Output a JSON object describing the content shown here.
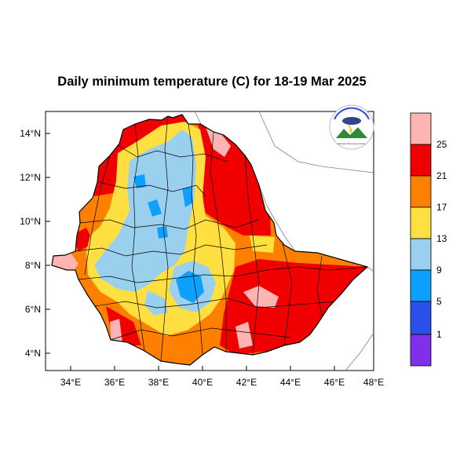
{
  "title": "Daily minimum temperature (C) for 18-19 Mar 2025",
  "map": {
    "lon_range": [
      33,
      48
    ],
    "lat_range": [
      3.2,
      15
    ],
    "x_ticks": [
      "34°E",
      "36°E",
      "38°E",
      "40°E",
      "42°E",
      "44°E",
      "46°E",
      "48°E"
    ],
    "y_ticks": [
      "4°N",
      "6°N",
      "8°N",
      "10°N",
      "12°N",
      "14°N"
    ]
  },
  "legend": {
    "labels": [
      "25",
      "21",
      "17",
      "13",
      "9",
      "5",
      "1"
    ],
    "colors": [
      "#ffb4b4",
      "#f00000",
      "#ff8000",
      "#ffe040",
      "#9ad0ee",
      "#0ea0ff",
      "#2a50ea",
      "#8030e8"
    ]
  },
  "logo": {
    "text": "Ethiopian Meteorology Institute",
    "icon": "meteorology-institute-logo"
  },
  "chart_data": {
    "type": "heatmap",
    "title": "Daily minimum temperature (C) for 18-19 Mar 2025",
    "variable": "Daily minimum temperature (C)",
    "color_levels": [
      1,
      5,
      9,
      13,
      17,
      21,
      25
    ],
    "xlim": [
      33,
      48
    ],
    "ylim": [
      3.2,
      15
    ]
  }
}
